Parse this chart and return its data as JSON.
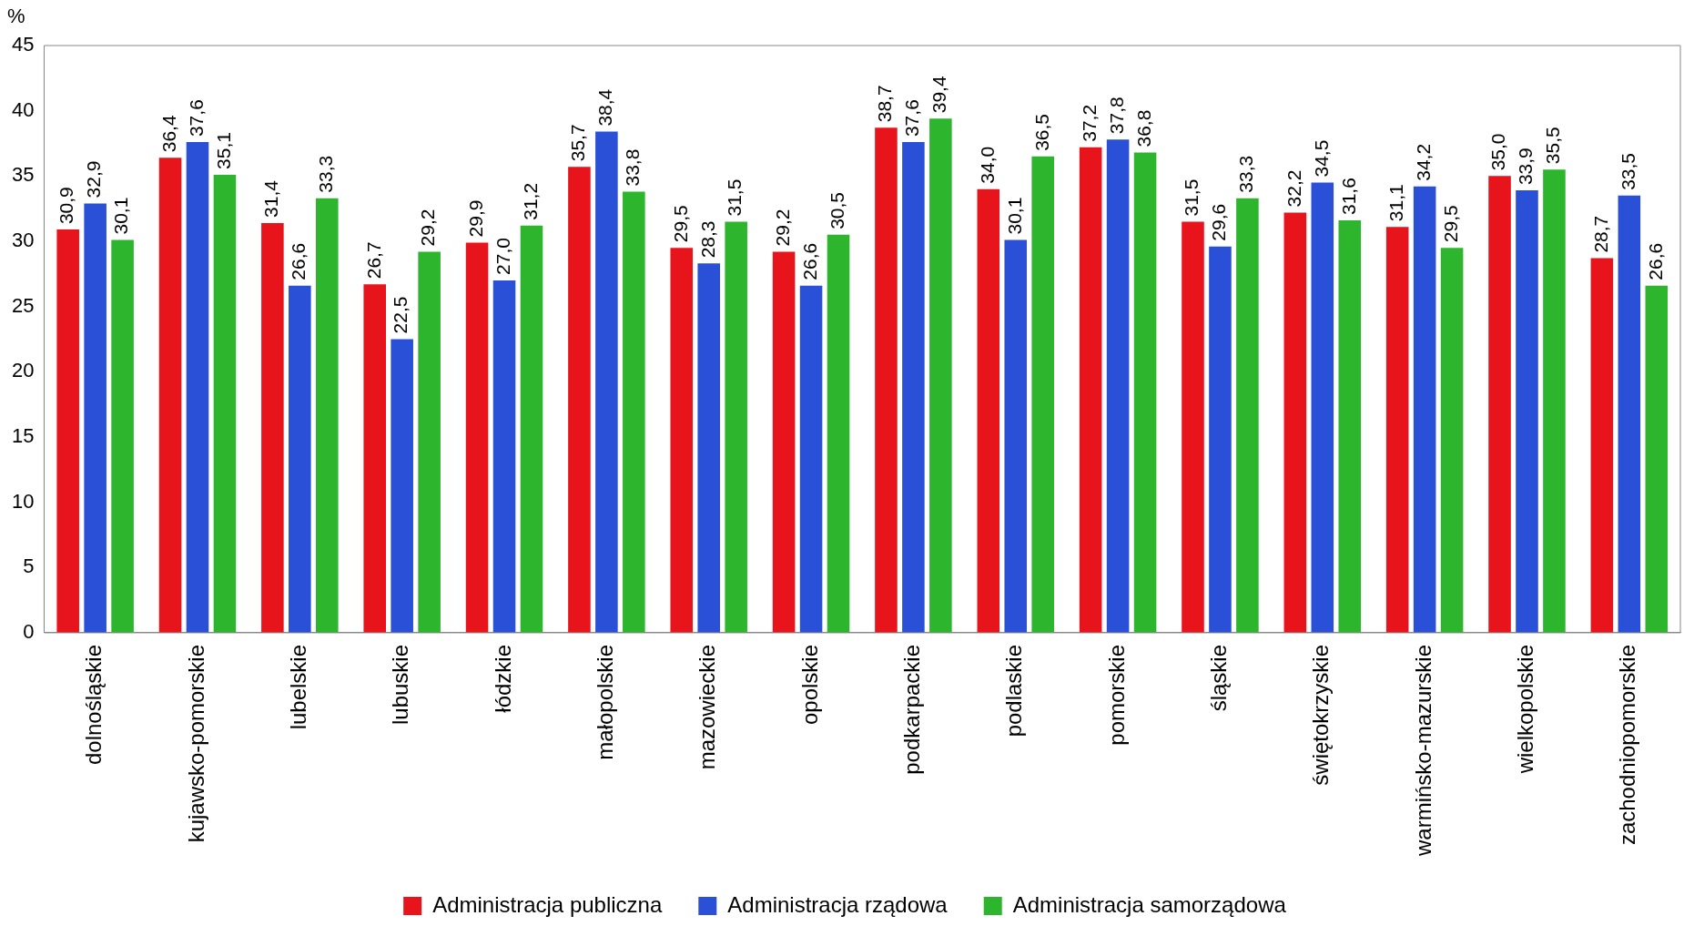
{
  "chart_data": {
    "type": "bar",
    "ylabel": "%",
    "categories": [
      "dolnośląskie",
      "kujawsko-pomorskie",
      "lubelskie",
      "lubuskie",
      "łódzkie",
      "małopolskie",
      "mazowieckie",
      "opolskie",
      "podkarpackie",
      "podlaskie",
      "pomorskie",
      "śląskie",
      "świętokrzyskie",
      "warmińsko-mazurskie",
      "wielkopolskie",
      "zachodniopomorskie"
    ],
    "series": [
      {
        "name": "Administracja publiczna",
        "color": "#e8141c",
        "values": [
          30.9,
          36.4,
          31.4,
          26.7,
          29.9,
          35.7,
          29.5,
          29.2,
          38.7,
          34.0,
          37.2,
          31.5,
          32.2,
          31.1,
          35.0,
          28.7
        ],
        "value_labels": [
          "30,9",
          "36,4",
          "31,4",
          "26,7",
          "29,9",
          "35,7",
          "29,5",
          "29,2",
          "38,7",
          "34,0",
          "37,2",
          "31,5",
          "32,2",
          "31,1",
          "35,0",
          "28,7"
        ]
      },
      {
        "name": "Administracja rządowa",
        "color": "#2a50d8",
        "values": [
          32.9,
          37.6,
          26.6,
          22.5,
          27.0,
          38.4,
          28.3,
          26.6,
          37.6,
          30.1,
          37.8,
          29.6,
          34.5,
          34.2,
          33.9,
          33.5
        ],
        "value_labels": [
          "32,9",
          "37,6",
          "26,6",
          "22,5",
          "27,0",
          "38,4",
          "28,3",
          "26,6",
          "37,6",
          "30,1",
          "37,8",
          "29,6",
          "34,5",
          "34,2",
          "33,9",
          "33,5"
        ]
      },
      {
        "name": "Administracja samorządowa",
        "color": "#2db52d",
        "values": [
          30.1,
          35.1,
          33.3,
          29.2,
          31.2,
          33.8,
          31.5,
          30.5,
          39.4,
          36.5,
          36.8,
          33.3,
          31.6,
          29.5,
          35.5,
          26.6
        ],
        "value_labels": [
          "30,1",
          "35,1",
          "33,3",
          "29,2",
          "31,2",
          "33,8",
          "31,5",
          "30,5",
          "39,4",
          "36,5",
          "36,8",
          "33,3",
          "31,6",
          "29,5",
          "35,5",
          "26,6"
        ]
      }
    ],
    "ylim": [
      0,
      45
    ],
    "yticks": [
      0,
      5,
      10,
      15,
      20,
      25,
      30,
      35,
      40,
      45
    ],
    "grid": false,
    "legend": "bottom"
  }
}
